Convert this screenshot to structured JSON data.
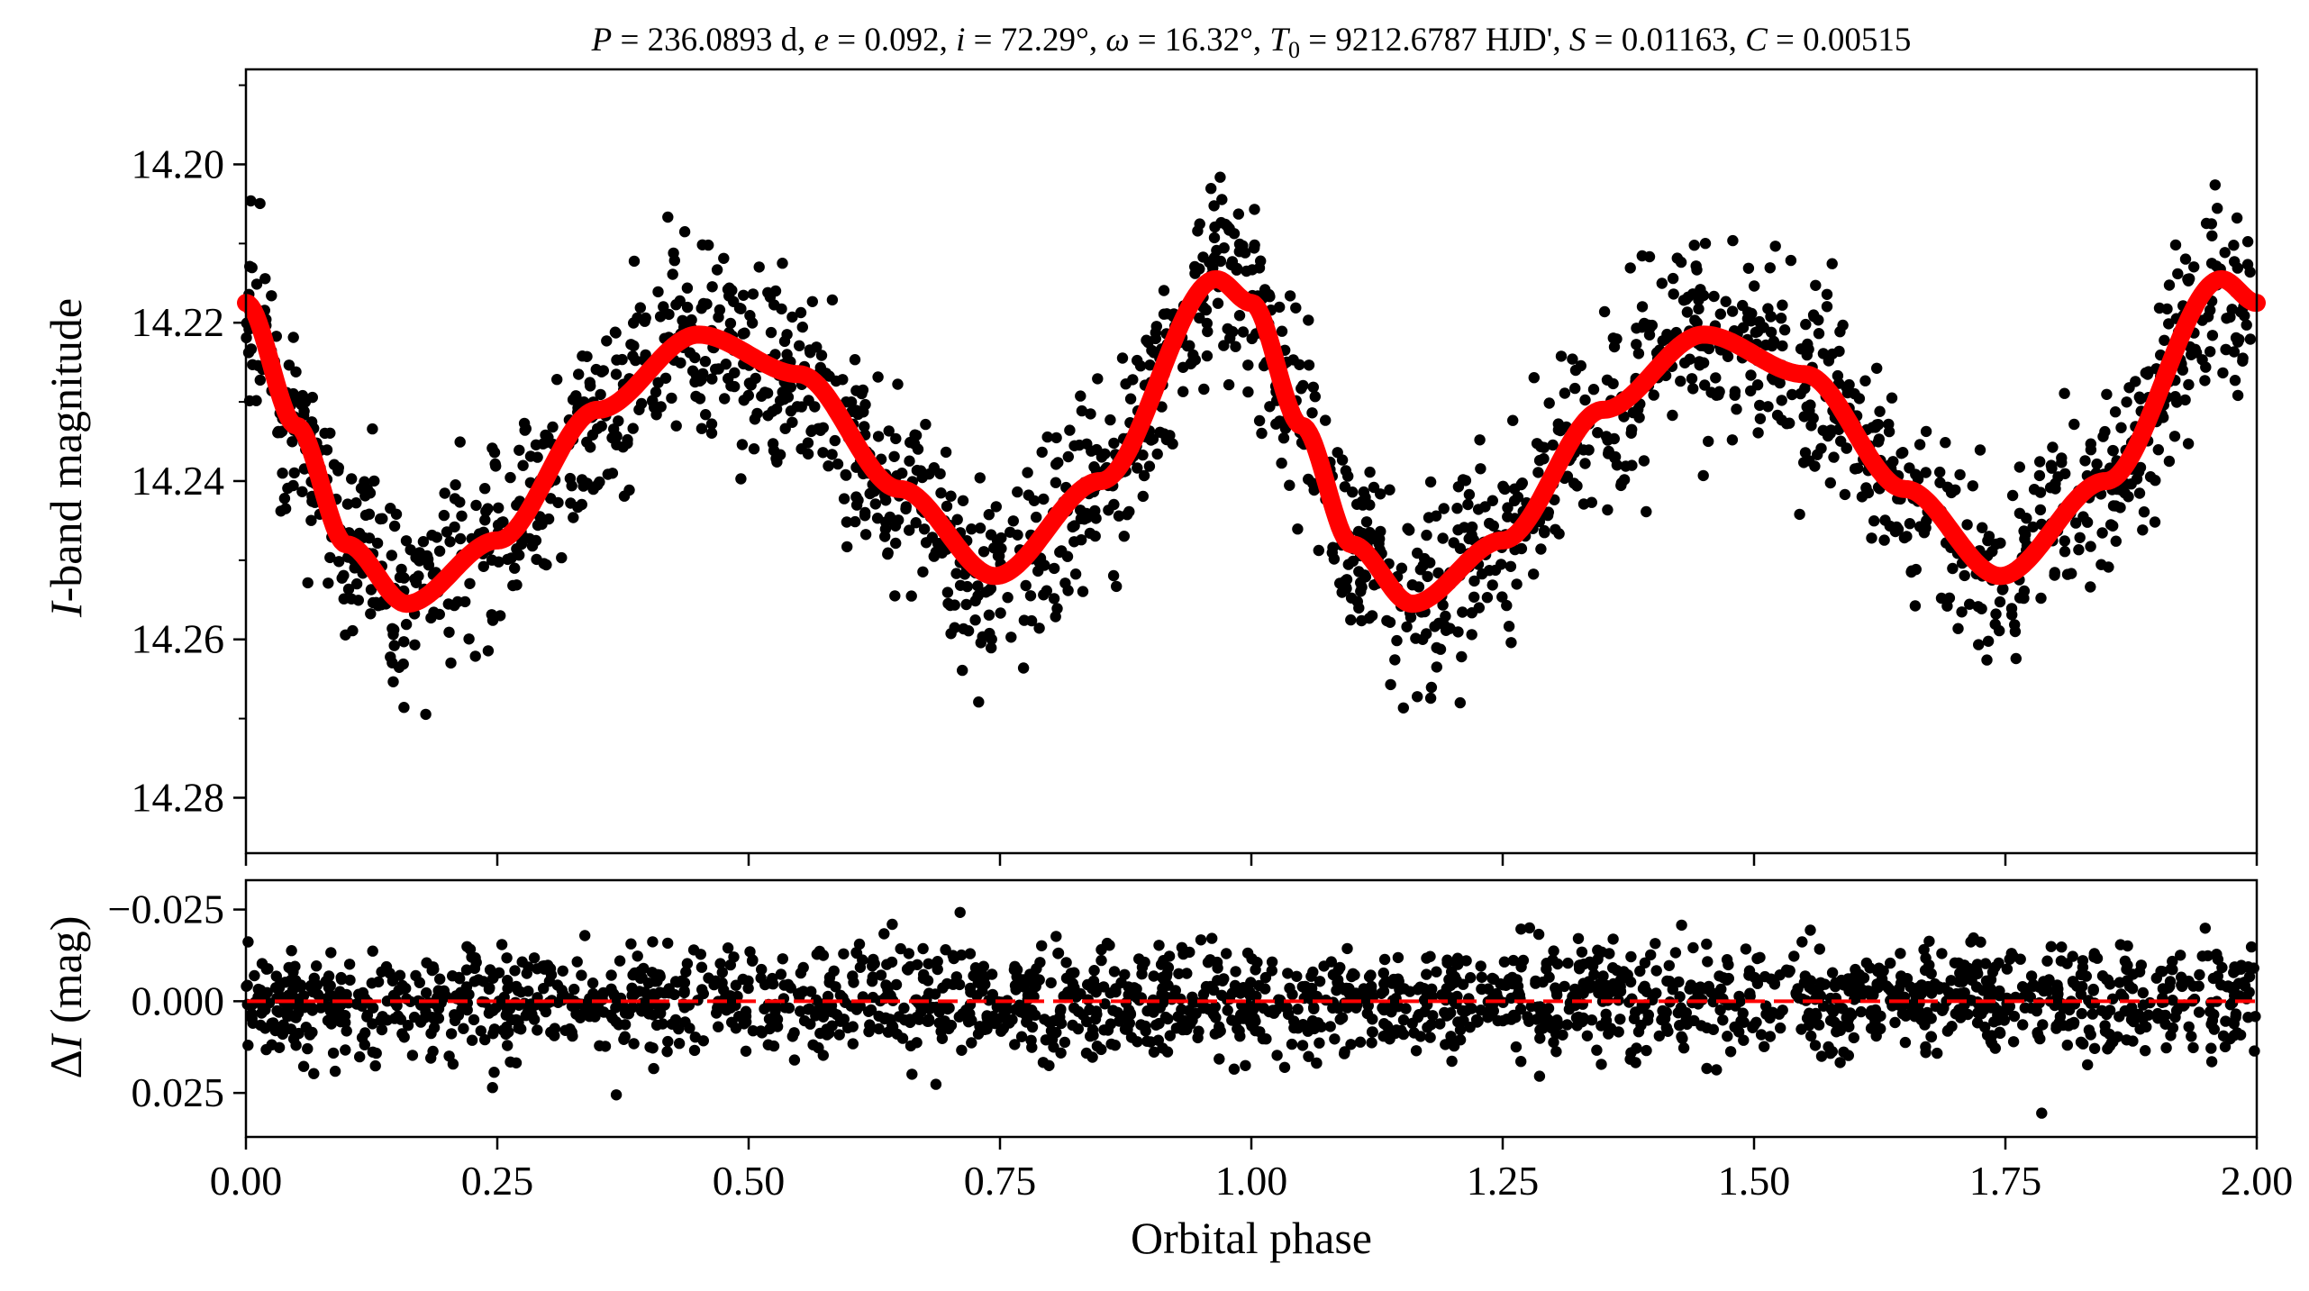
{
  "chart_data": [
    {
      "type": "scatter",
      "panel": "light-curve",
      "title": "P = 236.0893 d, e = 0.092, i = 72.29°, ω = 16.32°, T0 = 9212.6787 HJD', S = 0.01163, C = 0.00515",
      "title_parts": {
        "p_sym": "P",
        "p_val": " = 236.0893 d, ",
        "e_sym": "e",
        "e_val": " = 0.092, ",
        "i_sym": "i",
        "i_val": " = 72.29°, ",
        "w_sym": "ω",
        "w_val": " = 16.32°, ",
        "t_sym": "T",
        "t_sub": "0",
        "t_val": " = 9212.6787 HJD', ",
        "s_sym": "S",
        "s_val": " = 0.01163, ",
        "c_sym": "C",
        "c_val": " = 0.00515"
      },
      "ylabel": "I-band magnitude",
      "ylabel_parts": {
        "sym": "I",
        "rest": "-band magnitude"
      },
      "xlim": [
        0.0,
        2.0
      ],
      "ylim": [
        14.287,
        14.188
      ],
      "y_inverted": true,
      "yticks": [
        "14.20",
        "14.22",
        "14.24",
        "14.26",
        "14.28"
      ],
      "ytick_values": [
        14.2,
        14.22,
        14.24,
        14.26,
        14.28
      ],
      "grid": false,
      "legend": "none",
      "series": [
        {
          "kind": "points",
          "color": "#000000",
          "approx_count": 2000,
          "model_profile_phase": [
            0.0,
            0.05,
            0.1,
            0.16,
            0.25,
            0.35,
            0.45,
            0.55,
            0.65,
            0.745,
            0.85,
            0.965,
            1.0
          ],
          "model_profile_mag": [
            14.2175,
            14.233,
            14.248,
            14.2555,
            14.2475,
            14.231,
            14.2215,
            14.2265,
            14.241,
            14.252,
            14.24,
            14.2145,
            14.2175
          ],
          "scatter_sigma": 0.0075
        },
        {
          "kind": "model-curve",
          "color": "#ff0000",
          "phase": [
            0.0,
            0.05,
            0.1,
            0.16,
            0.25,
            0.35,
            0.45,
            0.55,
            0.65,
            0.745,
            0.85,
            0.965,
            1.0
          ],
          "mag": [
            14.2175,
            14.233,
            14.248,
            14.2555,
            14.2475,
            14.231,
            14.2215,
            14.2265,
            14.241,
            14.252,
            14.24,
            14.2145,
            14.2175
          ]
        }
      ]
    },
    {
      "type": "scatter",
      "panel": "residuals",
      "xlabel": "Orbital phase",
      "ylabel": "ΔI (mag)",
      "ylabel_parts": {
        "delta": "Δ",
        "sym": "I",
        "rest": " (mag)"
      },
      "xlim": [
        0.0,
        2.0
      ],
      "ylim": [
        0.037,
        -0.033
      ],
      "y_inverted": true,
      "xticks": [
        "0.00",
        "0.25",
        "0.50",
        "0.75",
        "1.00",
        "1.25",
        "1.50",
        "1.75",
        "2.00"
      ],
      "xtick_values": [
        0.0,
        0.25,
        0.5,
        0.75,
        1.0,
        1.25,
        1.5,
        1.75,
        2.0
      ],
      "yticks": [
        "−0.025",
        "0.000",
        "0.025"
      ],
      "ytick_values": [
        -0.025,
        0.0,
        0.025
      ],
      "grid": false,
      "legend": "none",
      "series": [
        {
          "kind": "points",
          "color": "#000000",
          "approx_count": 2000,
          "mean": 0.0,
          "sigma": 0.0075
        },
        {
          "kind": "zero-line",
          "color": "#ff0000",
          "style": "dashed",
          "value": 0.0
        }
      ]
    }
  ]
}
